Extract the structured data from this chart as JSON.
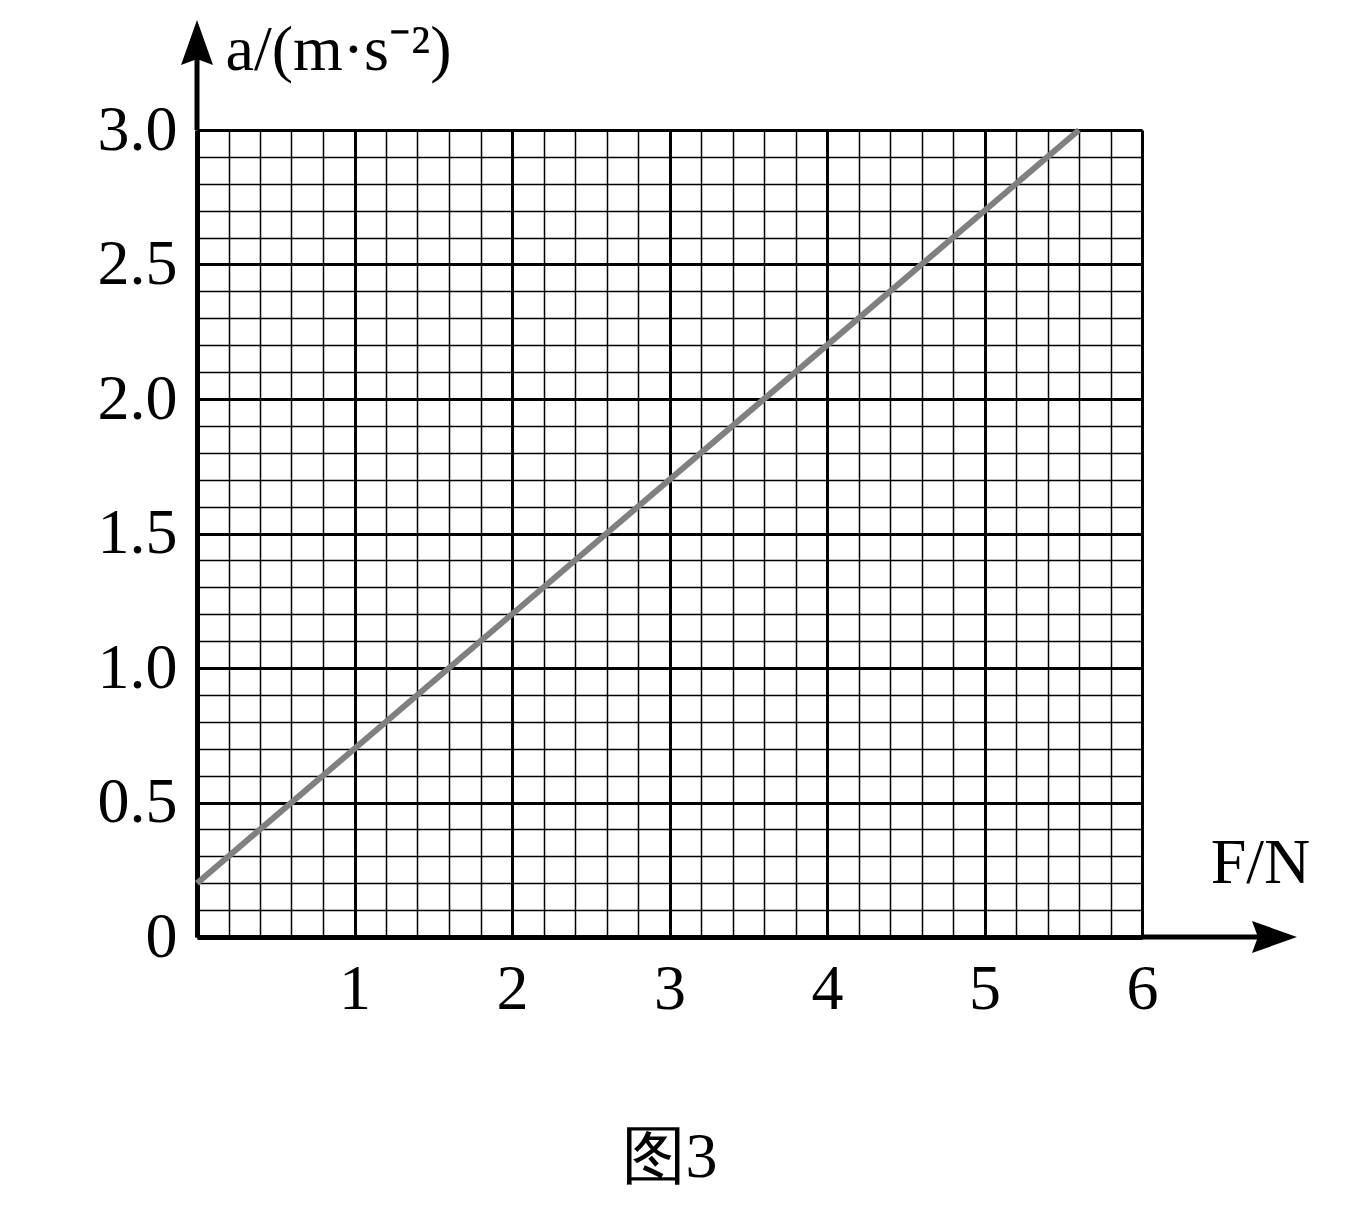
{
  "chart_data": {
    "type": "line",
    "title": "图3",
    "xlabel": "F/N",
    "ylabel": "a/(m·s⁻²)",
    "x": [
      0,
      5.6
    ],
    "series": [
      {
        "color": "#808080",
        "values": [
          0.2,
          3.0
        ]
      }
    ],
    "xlim": [
      0,
      6
    ],
    "ylim": [
      0,
      3
    ],
    "xticks": [
      {
        "value": 0,
        "label": null
      },
      1,
      2,
      3,
      4,
      5,
      6
    ],
    "yticks": [
      0,
      0.5,
      {
        "value": 1,
        "label": "1.0"
      },
      1.5,
      {
        "value": 2,
        "label": "2.0"
      },
      2.5,
      {
        "value": 3,
        "label": "3.0"
      }
    ],
    "grid": true
  }
}
